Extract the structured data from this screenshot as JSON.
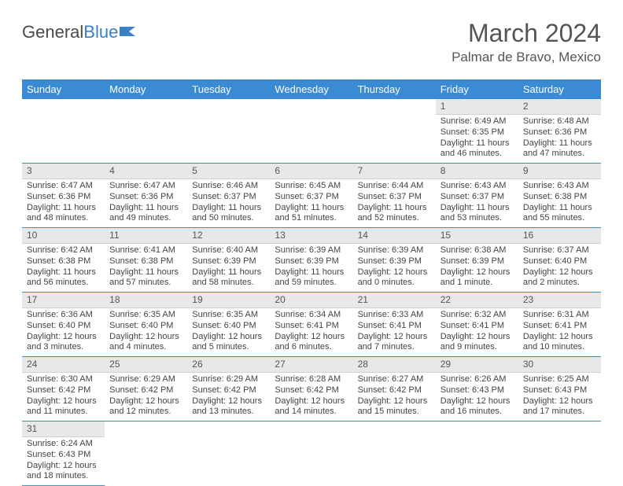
{
  "logo": {
    "text1": "General",
    "text2": "Blue"
  },
  "title": "March 2024",
  "location": "Palmar de Bravo, Mexico",
  "colors": {
    "header_bg": "#3b8bd4",
    "header_text": "#ffffff",
    "daynum_bg": "#e8e8e8",
    "cell_border": "#3b8bd4",
    "text": "#444444",
    "logo_gray": "#4a4a4a",
    "logo_blue": "#3b7fc4"
  },
  "weekdays": [
    "Sunday",
    "Monday",
    "Tuesday",
    "Wednesday",
    "Thursday",
    "Friday",
    "Saturday"
  ],
  "weeks": [
    [
      null,
      null,
      null,
      null,
      null,
      {
        "n": "1",
        "sr": "Sunrise: 6:49 AM",
        "ss": "Sunset: 6:35 PM",
        "dl1": "Daylight: 11 hours",
        "dl2": "and 46 minutes."
      },
      {
        "n": "2",
        "sr": "Sunrise: 6:48 AM",
        "ss": "Sunset: 6:36 PM",
        "dl1": "Daylight: 11 hours",
        "dl2": "and 47 minutes."
      }
    ],
    [
      {
        "n": "3",
        "sr": "Sunrise: 6:47 AM",
        "ss": "Sunset: 6:36 PM",
        "dl1": "Daylight: 11 hours",
        "dl2": "and 48 minutes."
      },
      {
        "n": "4",
        "sr": "Sunrise: 6:47 AM",
        "ss": "Sunset: 6:36 PM",
        "dl1": "Daylight: 11 hours",
        "dl2": "and 49 minutes."
      },
      {
        "n": "5",
        "sr": "Sunrise: 6:46 AM",
        "ss": "Sunset: 6:37 PM",
        "dl1": "Daylight: 11 hours",
        "dl2": "and 50 minutes."
      },
      {
        "n": "6",
        "sr": "Sunrise: 6:45 AM",
        "ss": "Sunset: 6:37 PM",
        "dl1": "Daylight: 11 hours",
        "dl2": "and 51 minutes."
      },
      {
        "n": "7",
        "sr": "Sunrise: 6:44 AM",
        "ss": "Sunset: 6:37 PM",
        "dl1": "Daylight: 11 hours",
        "dl2": "and 52 minutes."
      },
      {
        "n": "8",
        "sr": "Sunrise: 6:43 AM",
        "ss": "Sunset: 6:37 PM",
        "dl1": "Daylight: 11 hours",
        "dl2": "and 53 minutes."
      },
      {
        "n": "9",
        "sr": "Sunrise: 6:43 AM",
        "ss": "Sunset: 6:38 PM",
        "dl1": "Daylight: 11 hours",
        "dl2": "and 55 minutes."
      }
    ],
    [
      {
        "n": "10",
        "sr": "Sunrise: 6:42 AM",
        "ss": "Sunset: 6:38 PM",
        "dl1": "Daylight: 11 hours",
        "dl2": "and 56 minutes."
      },
      {
        "n": "11",
        "sr": "Sunrise: 6:41 AM",
        "ss": "Sunset: 6:38 PM",
        "dl1": "Daylight: 11 hours",
        "dl2": "and 57 minutes."
      },
      {
        "n": "12",
        "sr": "Sunrise: 6:40 AM",
        "ss": "Sunset: 6:39 PM",
        "dl1": "Daylight: 11 hours",
        "dl2": "and 58 minutes."
      },
      {
        "n": "13",
        "sr": "Sunrise: 6:39 AM",
        "ss": "Sunset: 6:39 PM",
        "dl1": "Daylight: 11 hours",
        "dl2": "and 59 minutes."
      },
      {
        "n": "14",
        "sr": "Sunrise: 6:39 AM",
        "ss": "Sunset: 6:39 PM",
        "dl1": "Daylight: 12 hours",
        "dl2": "and 0 minutes."
      },
      {
        "n": "15",
        "sr": "Sunrise: 6:38 AM",
        "ss": "Sunset: 6:39 PM",
        "dl1": "Daylight: 12 hours",
        "dl2": "and 1 minute."
      },
      {
        "n": "16",
        "sr": "Sunrise: 6:37 AM",
        "ss": "Sunset: 6:40 PM",
        "dl1": "Daylight: 12 hours",
        "dl2": "and 2 minutes."
      }
    ],
    [
      {
        "n": "17",
        "sr": "Sunrise: 6:36 AM",
        "ss": "Sunset: 6:40 PM",
        "dl1": "Daylight: 12 hours",
        "dl2": "and 3 minutes."
      },
      {
        "n": "18",
        "sr": "Sunrise: 6:35 AM",
        "ss": "Sunset: 6:40 PM",
        "dl1": "Daylight: 12 hours",
        "dl2": "and 4 minutes."
      },
      {
        "n": "19",
        "sr": "Sunrise: 6:35 AM",
        "ss": "Sunset: 6:40 PM",
        "dl1": "Daylight: 12 hours",
        "dl2": "and 5 minutes."
      },
      {
        "n": "20",
        "sr": "Sunrise: 6:34 AM",
        "ss": "Sunset: 6:41 PM",
        "dl1": "Daylight: 12 hours",
        "dl2": "and 6 minutes."
      },
      {
        "n": "21",
        "sr": "Sunrise: 6:33 AM",
        "ss": "Sunset: 6:41 PM",
        "dl1": "Daylight: 12 hours",
        "dl2": "and 7 minutes."
      },
      {
        "n": "22",
        "sr": "Sunrise: 6:32 AM",
        "ss": "Sunset: 6:41 PM",
        "dl1": "Daylight: 12 hours",
        "dl2": "and 9 minutes."
      },
      {
        "n": "23",
        "sr": "Sunrise: 6:31 AM",
        "ss": "Sunset: 6:41 PM",
        "dl1": "Daylight: 12 hours",
        "dl2": "and 10 minutes."
      }
    ],
    [
      {
        "n": "24",
        "sr": "Sunrise: 6:30 AM",
        "ss": "Sunset: 6:42 PM",
        "dl1": "Daylight: 12 hours",
        "dl2": "and 11 minutes."
      },
      {
        "n": "25",
        "sr": "Sunrise: 6:29 AM",
        "ss": "Sunset: 6:42 PM",
        "dl1": "Daylight: 12 hours",
        "dl2": "and 12 minutes."
      },
      {
        "n": "26",
        "sr": "Sunrise: 6:29 AM",
        "ss": "Sunset: 6:42 PM",
        "dl1": "Daylight: 12 hours",
        "dl2": "and 13 minutes."
      },
      {
        "n": "27",
        "sr": "Sunrise: 6:28 AM",
        "ss": "Sunset: 6:42 PM",
        "dl1": "Daylight: 12 hours",
        "dl2": "and 14 minutes."
      },
      {
        "n": "28",
        "sr": "Sunrise: 6:27 AM",
        "ss": "Sunset: 6:42 PM",
        "dl1": "Daylight: 12 hours",
        "dl2": "and 15 minutes."
      },
      {
        "n": "29",
        "sr": "Sunrise: 6:26 AM",
        "ss": "Sunset: 6:43 PM",
        "dl1": "Daylight: 12 hours",
        "dl2": "and 16 minutes."
      },
      {
        "n": "30",
        "sr": "Sunrise: 6:25 AM",
        "ss": "Sunset: 6:43 PM",
        "dl1": "Daylight: 12 hours",
        "dl2": "and 17 minutes."
      }
    ],
    [
      {
        "n": "31",
        "sr": "Sunrise: 6:24 AM",
        "ss": "Sunset: 6:43 PM",
        "dl1": "Daylight: 12 hours",
        "dl2": "and 18 minutes."
      },
      null,
      null,
      null,
      null,
      null,
      null
    ]
  ]
}
